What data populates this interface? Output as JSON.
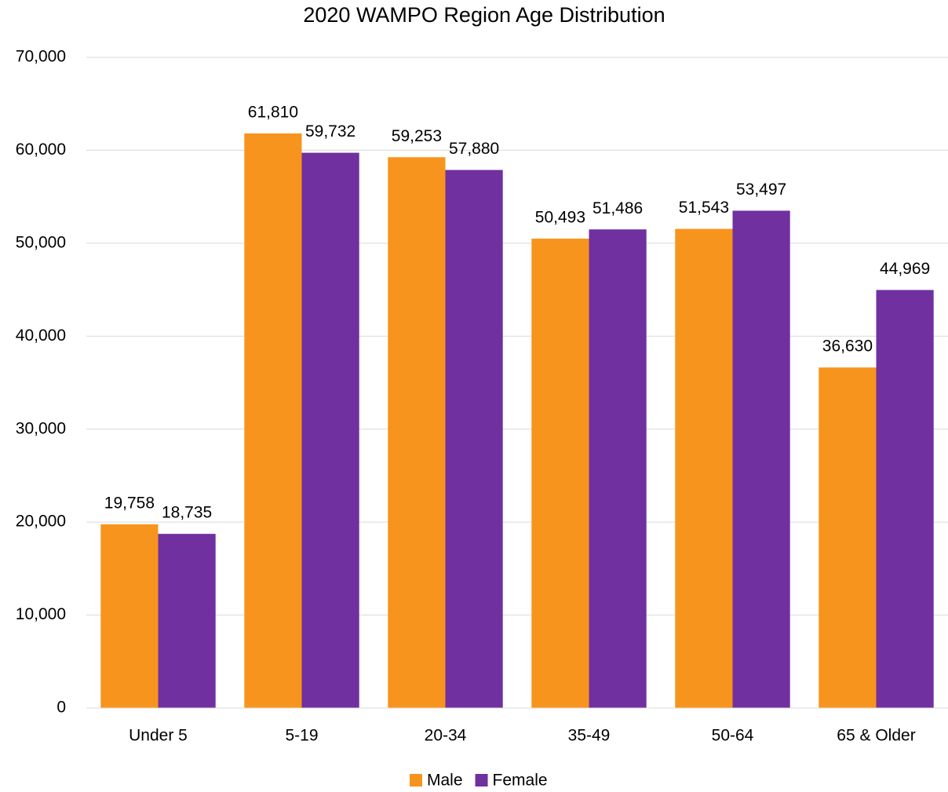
{
  "chart_data": {
    "type": "bar",
    "title": "2020 WAMPO Region Age Distribution",
    "categories": [
      "Under 5",
      "5-19",
      "20-34",
      "35-49",
      "50-64",
      "65 & Older"
    ],
    "series": [
      {
        "name": "Male",
        "color": "#f7941d",
        "values": [
          19758,
          61810,
          59253,
          50493,
          51543,
          36630
        ],
        "value_labels": [
          "19,758",
          "61,810",
          "59,253",
          "50,493",
          "51,543",
          "36,630"
        ]
      },
      {
        "name": "Female",
        "color": "#7030a0",
        "values": [
          18735,
          59732,
          57880,
          51486,
          53497,
          44969
        ],
        "value_labels": [
          "18,735",
          "59,732",
          "57,880",
          "51,486",
          "53,497",
          "44,969"
        ]
      }
    ],
    "ylim": [
      0,
      70000
    ],
    "yticks": [
      0,
      {
        "value": 10000,
        "label": "10,000"
      },
      {
        "value": 20000,
        "label": "20,000"
      },
      {
        "value": 30000,
        "label": "30,000"
      },
      {
        "value": 40000,
        "label": "40,000"
      },
      {
        "value": 50000,
        "label": "50,000"
      },
      {
        "value": 60000,
        "label": "60,000"
      },
      {
        "value": 70000,
        "label": "70,000"
      }
    ],
    "grid": true,
    "legend": "bottom"
  }
}
